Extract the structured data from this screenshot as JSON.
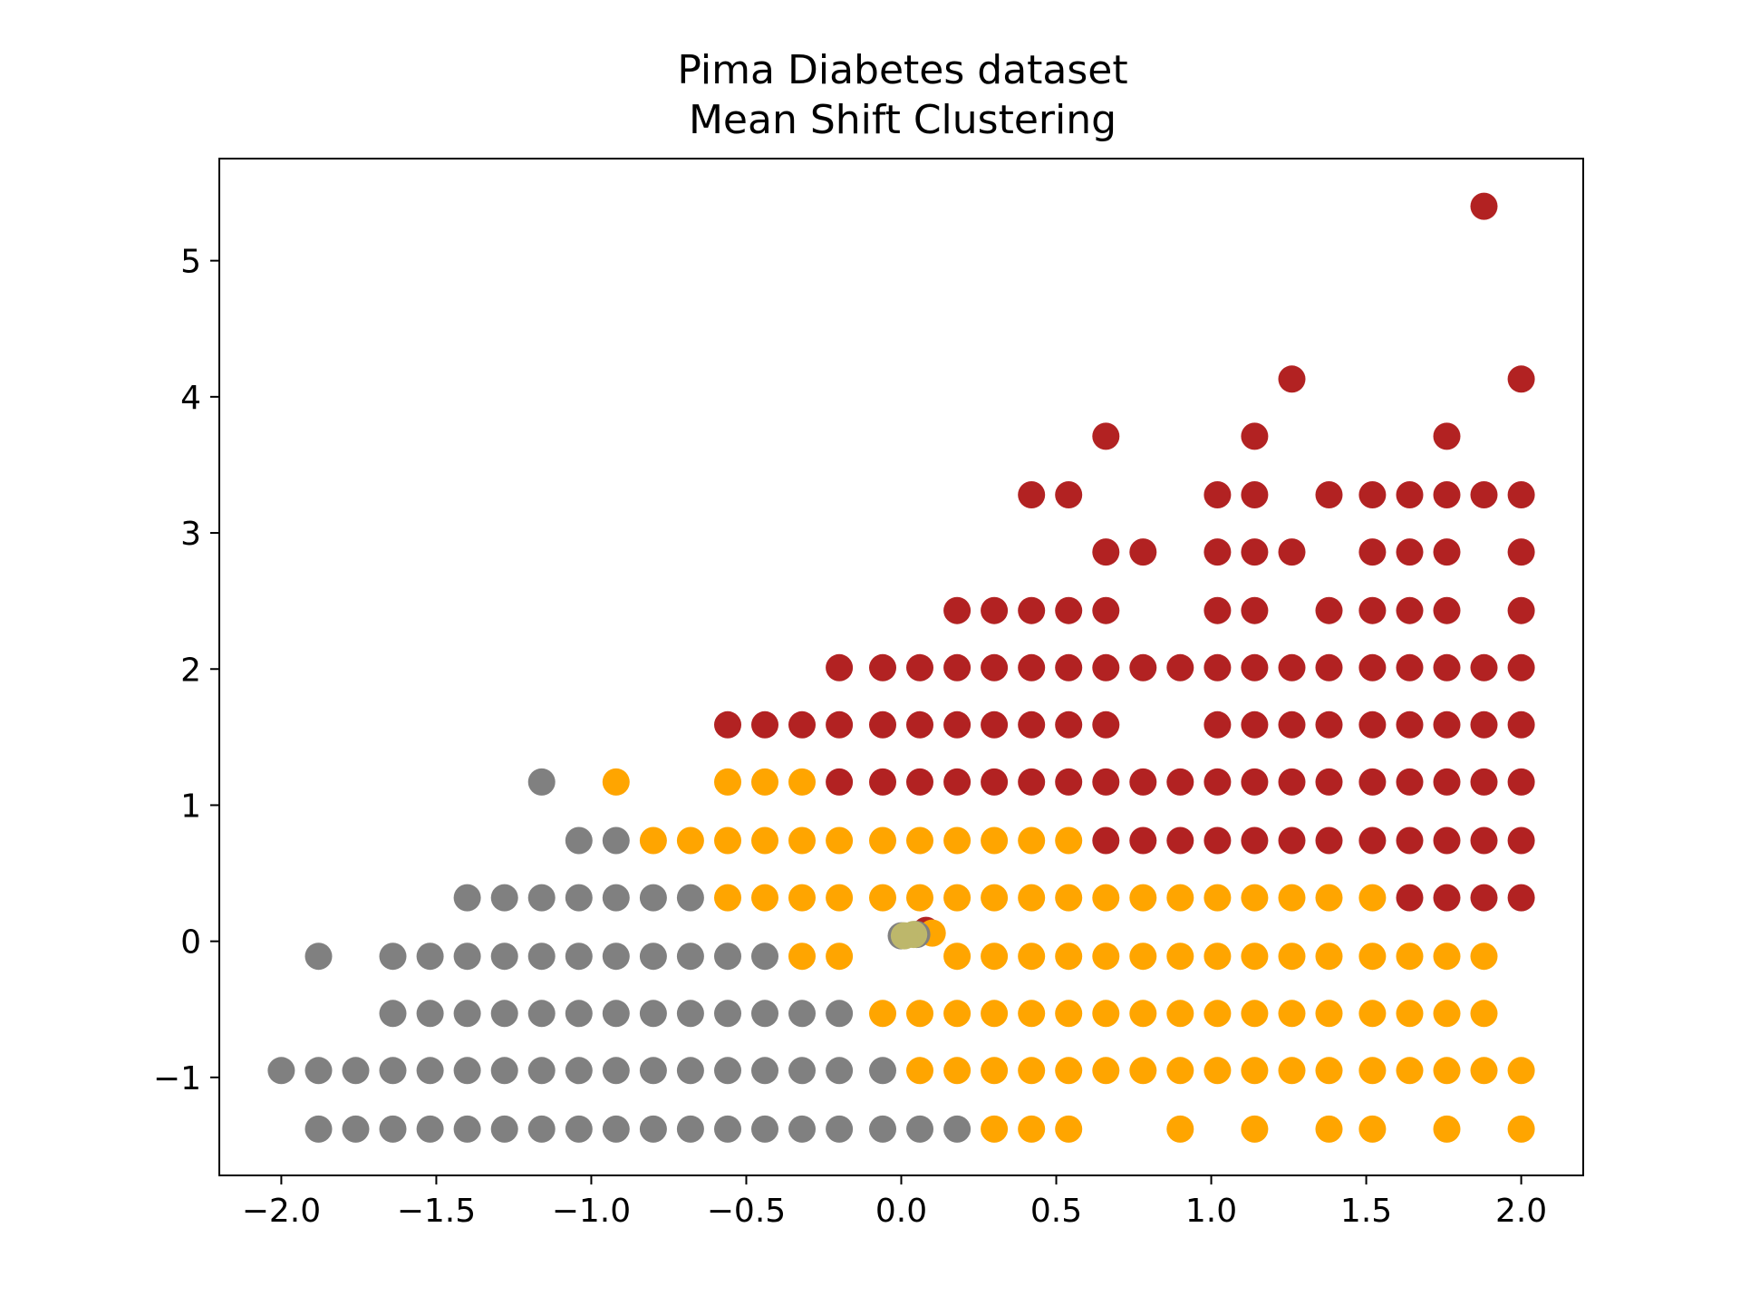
{
  "chart_data": {
    "type": "scatter",
    "title": "Pima Diabetes dataset",
    "subtitle": "Mean Shift Clustering",
    "xlabel": "",
    "ylabel": "",
    "xlim": [
      -2.2,
      2.2
    ],
    "ylim": [
      -1.72,
      5.75
    ],
    "xticks": [
      -2.0,
      -1.5,
      -1.0,
      -0.5,
      0.0,
      0.5,
      1.0,
      1.5,
      2.0
    ],
    "yticks": [
      -1,
      0,
      1,
      2,
      3,
      4,
      5
    ],
    "xtick_labels": [
      "−2.0",
      "−1.5",
      "−1.0",
      "−0.5",
      "0.0",
      "0.5",
      "1.0",
      "1.5",
      "2.0"
    ],
    "ytick_labels": [
      "−1",
      "0",
      "1",
      "2",
      "3",
      "4",
      "5"
    ],
    "grid": false,
    "legend": "none",
    "colors": {
      "cluster_0": "#808080",
      "cluster_1": "#ffa500",
      "cluster_2": "#b22222",
      "centroid": "#bdb76b"
    },
    "series": [
      {
        "color": "#808080",
        "points": [
          [
            -2.0,
            -0.95
          ],
          [
            -1.88,
            -0.95
          ],
          [
            -1.76,
            -0.95
          ],
          [
            -1.64,
            -0.95
          ],
          [
            -1.52,
            -0.95
          ],
          [
            -1.4,
            -0.95
          ],
          [
            -1.28,
            -0.95
          ],
          [
            -1.16,
            -0.95
          ],
          [
            -1.04,
            -0.95
          ],
          [
            -0.92,
            -0.95
          ],
          [
            -0.8,
            -0.95
          ],
          [
            -0.68,
            -0.95
          ],
          [
            -0.56,
            -0.95
          ],
          [
            -0.44,
            -0.95
          ],
          [
            -0.32,
            -0.95
          ],
          [
            -0.2,
            -0.95
          ],
          [
            -0.06,
            -0.95
          ],
          [
            -1.88,
            -1.38
          ],
          [
            -1.76,
            -1.38
          ],
          [
            -1.64,
            -1.38
          ],
          [
            -1.52,
            -1.38
          ],
          [
            -1.4,
            -1.38
          ],
          [
            -1.28,
            -1.38
          ],
          [
            -1.16,
            -1.38
          ],
          [
            -1.04,
            -1.38
          ],
          [
            -0.92,
            -1.38
          ],
          [
            -0.8,
            -1.38
          ],
          [
            -0.68,
            -1.38
          ],
          [
            -0.56,
            -1.38
          ],
          [
            -0.44,
            -1.38
          ],
          [
            -0.32,
            -1.38
          ],
          [
            -0.2,
            -1.38
          ],
          [
            -0.06,
            -1.38
          ],
          [
            0.06,
            -1.38
          ],
          [
            0.18,
            -1.38
          ],
          [
            -1.64,
            -0.53
          ],
          [
            -1.52,
            -0.53
          ],
          [
            -1.4,
            -0.53
          ],
          [
            -1.28,
            -0.53
          ],
          [
            -1.16,
            -0.53
          ],
          [
            -1.04,
            -0.53
          ],
          [
            -0.92,
            -0.53
          ],
          [
            -0.8,
            -0.53
          ],
          [
            -0.68,
            -0.53
          ],
          [
            -0.56,
            -0.53
          ],
          [
            -0.44,
            -0.53
          ],
          [
            -0.32,
            -0.53
          ],
          [
            -0.2,
            -0.53
          ],
          [
            -1.88,
            -0.11
          ],
          [
            -1.64,
            -0.11
          ],
          [
            -1.52,
            -0.11
          ],
          [
            -1.4,
            -0.11
          ],
          [
            -1.28,
            -0.11
          ],
          [
            -1.16,
            -0.11
          ],
          [
            -1.04,
            -0.11
          ],
          [
            -0.92,
            -0.11
          ],
          [
            -0.8,
            -0.11
          ],
          [
            -0.68,
            -0.11
          ],
          [
            -0.56,
            -0.11
          ],
          [
            -0.44,
            -0.11
          ],
          [
            -1.4,
            0.32
          ],
          [
            -1.28,
            0.32
          ],
          [
            -1.16,
            0.32
          ],
          [
            -1.04,
            0.32
          ],
          [
            -0.92,
            0.32
          ],
          [
            -0.8,
            0.32
          ],
          [
            -0.68,
            0.32
          ],
          [
            -1.04,
            0.74
          ],
          [
            -0.92,
            0.74
          ],
          [
            -1.16,
            1.17
          ]
        ]
      },
      {
        "color": "#ffa500",
        "points": [
          [
            0.06,
            -0.95
          ],
          [
            0.18,
            -0.95
          ],
          [
            0.3,
            -0.95
          ],
          [
            0.42,
            -0.95
          ],
          [
            0.54,
            -0.95
          ],
          [
            0.66,
            -0.95
          ],
          [
            0.78,
            -0.95
          ],
          [
            0.9,
            -0.95
          ],
          [
            1.02,
            -0.95
          ],
          [
            1.14,
            -0.95
          ],
          [
            1.26,
            -0.95
          ],
          [
            1.38,
            -0.95
          ],
          [
            1.52,
            -0.95
          ],
          [
            1.64,
            -0.95
          ],
          [
            1.76,
            -0.95
          ],
          [
            1.88,
            -0.95
          ],
          [
            2.0,
            -0.95
          ],
          [
            0.3,
            -1.38
          ],
          [
            0.42,
            -1.38
          ],
          [
            0.54,
            -1.38
          ],
          [
            0.9,
            -1.38
          ],
          [
            1.14,
            -1.38
          ],
          [
            1.38,
            -1.38
          ],
          [
            1.52,
            -1.38
          ],
          [
            1.76,
            -1.38
          ],
          [
            2.0,
            -1.38
          ],
          [
            -0.06,
            -0.53
          ],
          [
            0.06,
            -0.53
          ],
          [
            0.18,
            -0.53
          ],
          [
            0.3,
            -0.53
          ],
          [
            0.42,
            -0.53
          ],
          [
            0.54,
            -0.53
          ],
          [
            0.66,
            -0.53
          ],
          [
            0.78,
            -0.53
          ],
          [
            0.9,
            -0.53
          ],
          [
            1.02,
            -0.53
          ],
          [
            1.14,
            -0.53
          ],
          [
            1.26,
            -0.53
          ],
          [
            1.38,
            -0.53
          ],
          [
            1.52,
            -0.53
          ],
          [
            1.64,
            -0.53
          ],
          [
            1.76,
            -0.53
          ],
          [
            1.88,
            -0.53
          ],
          [
            -0.32,
            -0.11
          ],
          [
            -0.2,
            -0.11
          ],
          [
            0.18,
            -0.11
          ],
          [
            0.3,
            -0.11
          ],
          [
            0.42,
            -0.11
          ],
          [
            0.54,
            -0.11
          ],
          [
            0.66,
            -0.11
          ],
          [
            0.78,
            -0.11
          ],
          [
            0.9,
            -0.11
          ],
          [
            1.02,
            -0.11
          ],
          [
            1.14,
            -0.11
          ],
          [
            1.26,
            -0.11
          ],
          [
            1.38,
            -0.11
          ],
          [
            1.52,
            -0.11
          ],
          [
            1.64,
            -0.11
          ],
          [
            1.76,
            -0.11
          ],
          [
            1.88,
            -0.11
          ],
          [
            -0.56,
            0.32
          ],
          [
            -0.44,
            0.32
          ],
          [
            -0.32,
            0.32
          ],
          [
            -0.2,
            0.32
          ],
          [
            -0.06,
            0.32
          ],
          [
            0.06,
            0.32
          ],
          [
            0.18,
            0.32
          ],
          [
            0.3,
            0.32
          ],
          [
            0.42,
            0.32
          ],
          [
            0.54,
            0.32
          ],
          [
            0.66,
            0.32
          ],
          [
            0.78,
            0.32
          ],
          [
            0.9,
            0.32
          ],
          [
            1.02,
            0.32
          ],
          [
            1.14,
            0.32
          ],
          [
            1.26,
            0.32
          ],
          [
            1.38,
            0.32
          ],
          [
            1.52,
            0.32
          ],
          [
            -0.8,
            0.74
          ],
          [
            -0.68,
            0.74
          ],
          [
            -0.56,
            0.74
          ],
          [
            -0.44,
            0.74
          ],
          [
            -0.32,
            0.74
          ],
          [
            -0.2,
            0.74
          ],
          [
            -0.06,
            0.74
          ],
          [
            0.06,
            0.74
          ],
          [
            0.18,
            0.74
          ],
          [
            0.3,
            0.74
          ],
          [
            0.42,
            0.74
          ],
          [
            0.54,
            0.74
          ],
          [
            -0.92,
            1.17
          ],
          [
            -0.56,
            1.17
          ],
          [
            -0.44,
            1.17
          ],
          [
            -0.32,
            1.17
          ]
        ]
      },
      {
        "color": "#b22222",
        "points": [
          [
            1.64,
            0.32
          ],
          [
            1.76,
            0.32
          ],
          [
            1.88,
            0.32
          ],
          [
            2.0,
            0.32
          ],
          [
            0.66,
            0.74
          ],
          [
            0.78,
            0.74
          ],
          [
            0.9,
            0.74
          ],
          [
            1.02,
            0.74
          ],
          [
            1.14,
            0.74
          ],
          [
            1.26,
            0.74
          ],
          [
            1.38,
            0.74
          ],
          [
            1.52,
            0.74
          ],
          [
            1.64,
            0.74
          ],
          [
            1.76,
            0.74
          ],
          [
            1.88,
            0.74
          ],
          [
            2.0,
            0.74
          ],
          [
            -0.2,
            1.17
          ],
          [
            -0.06,
            1.17
          ],
          [
            0.06,
            1.17
          ],
          [
            0.18,
            1.17
          ],
          [
            0.3,
            1.17
          ],
          [
            0.42,
            1.17
          ],
          [
            0.54,
            1.17
          ],
          [
            0.66,
            1.17
          ],
          [
            0.78,
            1.17
          ],
          [
            0.9,
            1.17
          ],
          [
            1.02,
            1.17
          ],
          [
            1.14,
            1.17
          ],
          [
            1.26,
            1.17
          ],
          [
            1.38,
            1.17
          ],
          [
            1.52,
            1.17
          ],
          [
            1.64,
            1.17
          ],
          [
            1.76,
            1.17
          ],
          [
            1.88,
            1.17
          ],
          [
            2.0,
            1.17
          ],
          [
            -0.56,
            1.59
          ],
          [
            -0.44,
            1.59
          ],
          [
            -0.32,
            1.59
          ],
          [
            -0.2,
            1.59
          ],
          [
            -0.06,
            1.59
          ],
          [
            0.06,
            1.59
          ],
          [
            0.18,
            1.59
          ],
          [
            0.3,
            1.59
          ],
          [
            0.42,
            1.59
          ],
          [
            0.54,
            1.59
          ],
          [
            0.66,
            1.59
          ],
          [
            1.02,
            1.59
          ],
          [
            1.14,
            1.59
          ],
          [
            1.26,
            1.59
          ],
          [
            1.38,
            1.59
          ],
          [
            1.52,
            1.59
          ],
          [
            1.64,
            1.59
          ],
          [
            1.76,
            1.59
          ],
          [
            1.88,
            1.59
          ],
          [
            2.0,
            1.59
          ],
          [
            -0.2,
            2.01
          ],
          [
            -0.06,
            2.01
          ],
          [
            0.06,
            2.01
          ],
          [
            0.18,
            2.01
          ],
          [
            0.3,
            2.01
          ],
          [
            0.42,
            2.01
          ],
          [
            0.54,
            2.01
          ],
          [
            0.66,
            2.01
          ],
          [
            0.78,
            2.01
          ],
          [
            0.9,
            2.01
          ],
          [
            1.02,
            2.01
          ],
          [
            1.14,
            2.01
          ],
          [
            1.26,
            2.01
          ],
          [
            1.38,
            2.01
          ],
          [
            1.52,
            2.01
          ],
          [
            1.64,
            2.01
          ],
          [
            1.76,
            2.01
          ],
          [
            1.88,
            2.01
          ],
          [
            2.0,
            2.01
          ],
          [
            0.18,
            2.43
          ],
          [
            0.3,
            2.43
          ],
          [
            0.42,
            2.43
          ],
          [
            0.54,
            2.43
          ],
          [
            0.66,
            2.43
          ],
          [
            1.02,
            2.43
          ],
          [
            1.14,
            2.43
          ],
          [
            1.38,
            2.43
          ],
          [
            1.52,
            2.43
          ],
          [
            1.64,
            2.43
          ],
          [
            1.76,
            2.43
          ],
          [
            2.0,
            2.43
          ],
          [
            0.66,
            2.86
          ],
          [
            0.78,
            2.86
          ],
          [
            1.02,
            2.86
          ],
          [
            1.14,
            2.86
          ],
          [
            1.26,
            2.86
          ],
          [
            1.52,
            2.86
          ],
          [
            1.64,
            2.86
          ],
          [
            1.76,
            2.86
          ],
          [
            2.0,
            2.86
          ],
          [
            0.42,
            3.28
          ],
          [
            0.54,
            3.28
          ],
          [
            1.02,
            3.28
          ],
          [
            1.14,
            3.28
          ],
          [
            1.38,
            3.28
          ],
          [
            1.52,
            3.28
          ],
          [
            1.64,
            3.28
          ],
          [
            1.76,
            3.28
          ],
          [
            1.88,
            3.28
          ],
          [
            2.0,
            3.28
          ],
          [
            0.66,
            3.71
          ],
          [
            1.14,
            3.71
          ],
          [
            1.76,
            3.71
          ],
          [
            1.26,
            4.13
          ],
          [
            2.0,
            4.13
          ],
          [
            1.88,
            5.4
          ]
        ]
      }
    ],
    "centroids": [
      {
        "color": "#b22222",
        "x": 0.08,
        "y": 0.08
      },
      {
        "color": "#ffa500",
        "x": 0.1,
        "y": 0.06
      },
      {
        "color": "#808080",
        "x": 0.05,
        "y": 0.05
      },
      {
        "color": "#808080",
        "x": 0.0,
        "y": 0.04
      },
      {
        "color": "#bdb76b",
        "x": 0.04,
        "y": 0.05
      },
      {
        "color": "#bdb76b",
        "x": 0.01,
        "y": 0.04
      }
    ]
  }
}
